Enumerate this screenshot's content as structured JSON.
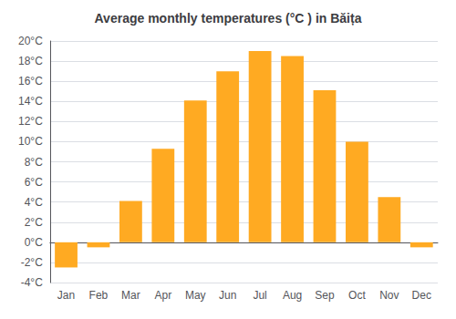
{
  "chart_data": {
    "type": "bar",
    "title": "Average monthly temperatures (°C ) in Băița",
    "categories": [
      "Jan",
      "Feb",
      "Mar",
      "Apr",
      "May",
      "Jun",
      "Jul",
      "Aug",
      "Sep",
      "Oct",
      "Nov",
      "Dec"
    ],
    "values": [
      -2.5,
      -0.5,
      4.1,
      9.3,
      14.1,
      17.0,
      19.0,
      18.5,
      15.1,
      10.0,
      4.5,
      -0.5
    ],
    "color": "#FFAA22",
    "ylim": [
      -4,
      20
    ],
    "yticks": [
      {
        "value": -4,
        "label": "-4°C"
      },
      {
        "value": -2,
        "label": "-2°C"
      },
      {
        "value": 0,
        "label": "0°C"
      },
      {
        "value": 2,
        "label": "2°C"
      },
      {
        "value": 4,
        "label": "4°C"
      },
      {
        "value": 6,
        "label": "6°C"
      },
      {
        "value": 8,
        "label": "8°C"
      },
      {
        "value": 10,
        "label": "10°C"
      },
      {
        "value": 12,
        "label": "12°C"
      },
      {
        "value": 14,
        "label": "14°C"
      },
      {
        "value": 16,
        "label": "16°C"
      },
      {
        "value": 18,
        "label": "18°C"
      },
      {
        "value": 20,
        "label": "20°C"
      }
    ],
    "grid": true
  }
}
